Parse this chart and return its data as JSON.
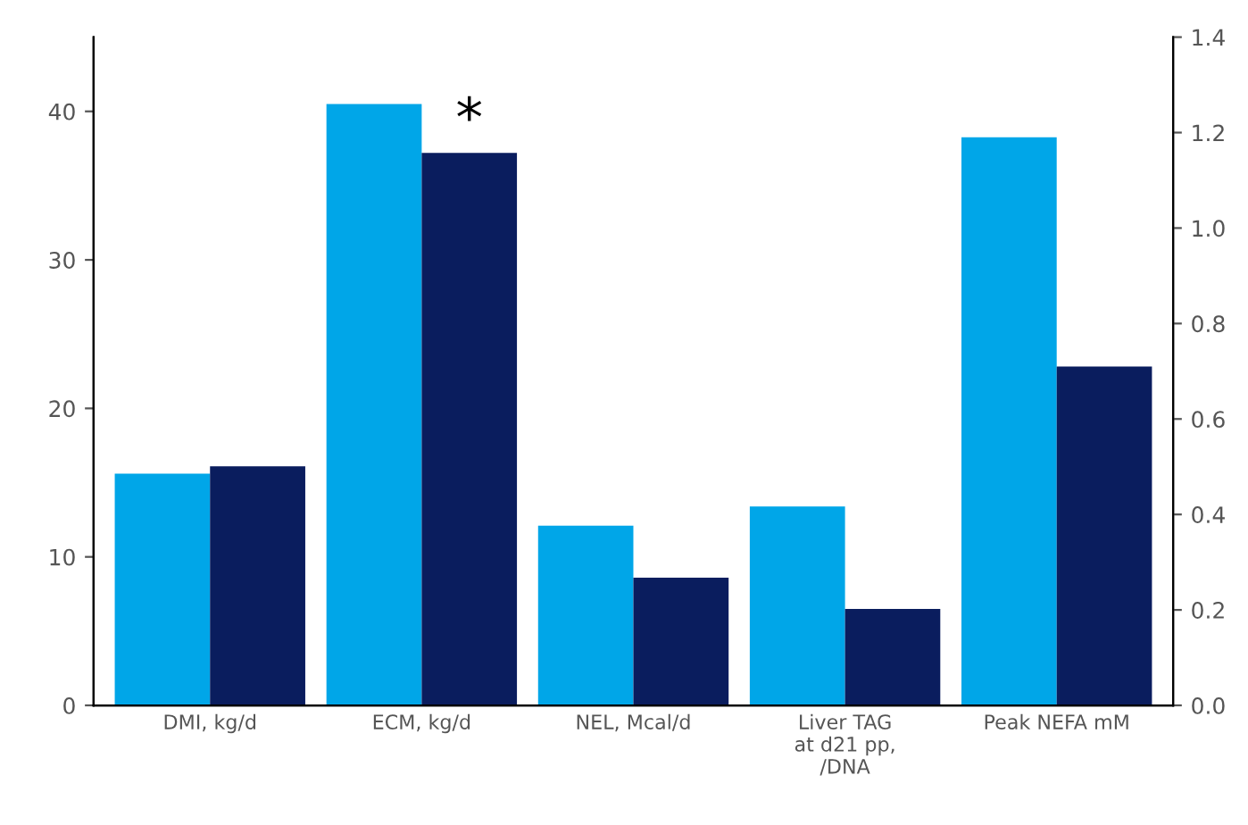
{
  "chart_data": {
    "type": "bar",
    "categories": [
      "DMI, kg/d",
      "ECM, kg/d",
      "NEL, Mcal/d",
      "Liver TAG\nat d21 pp,\n/DNA",
      "Peak NEFA mM"
    ],
    "series": [
      {
        "color": "#00a6e8",
        "values": [
          15.6,
          40.5,
          12.1,
          13.4,
          null
        ]
      },
      {
        "color": "#0a1d5e",
        "values": [
          16.1,
          37.2,
          8.6,
          6.5,
          null
        ]
      },
      {
        "color": "#00a6e8",
        "axis": "y2",
        "values": [
          null,
          null,
          null,
          null,
          1.19
        ]
      },
      {
        "color": "#0a1d5e",
        "axis": "y2",
        "values": [
          null,
          null,
          null,
          null,
          0.71
        ]
      }
    ],
    "ylim": [
      0,
      45
    ],
    "yticks": [
      0,
      10,
      20,
      30,
      40
    ],
    "y2lim": [
      0,
      1.4
    ],
    "y2ticks": [
      {
        "value": 0,
        "label": "0.0"
      },
      {
        "value": 0.2,
        "label": "0.2"
      },
      {
        "value": 0.4,
        "label": "0.4"
      },
      {
        "value": 0.6,
        "label": "0.6"
      },
      {
        "value": 0.8,
        "label": "0.8"
      },
      {
        "value": 1.0,
        "label": "1.0"
      },
      {
        "value": 1.2,
        "label": "1.2"
      },
      {
        "value": 1.4,
        "label": "1.4"
      }
    ],
    "annotations": [
      {
        "text": "*",
        "x": "ECM, kg/d",
        "y": 37.2
      }
    ],
    "grid": false,
    "legend": false
  }
}
